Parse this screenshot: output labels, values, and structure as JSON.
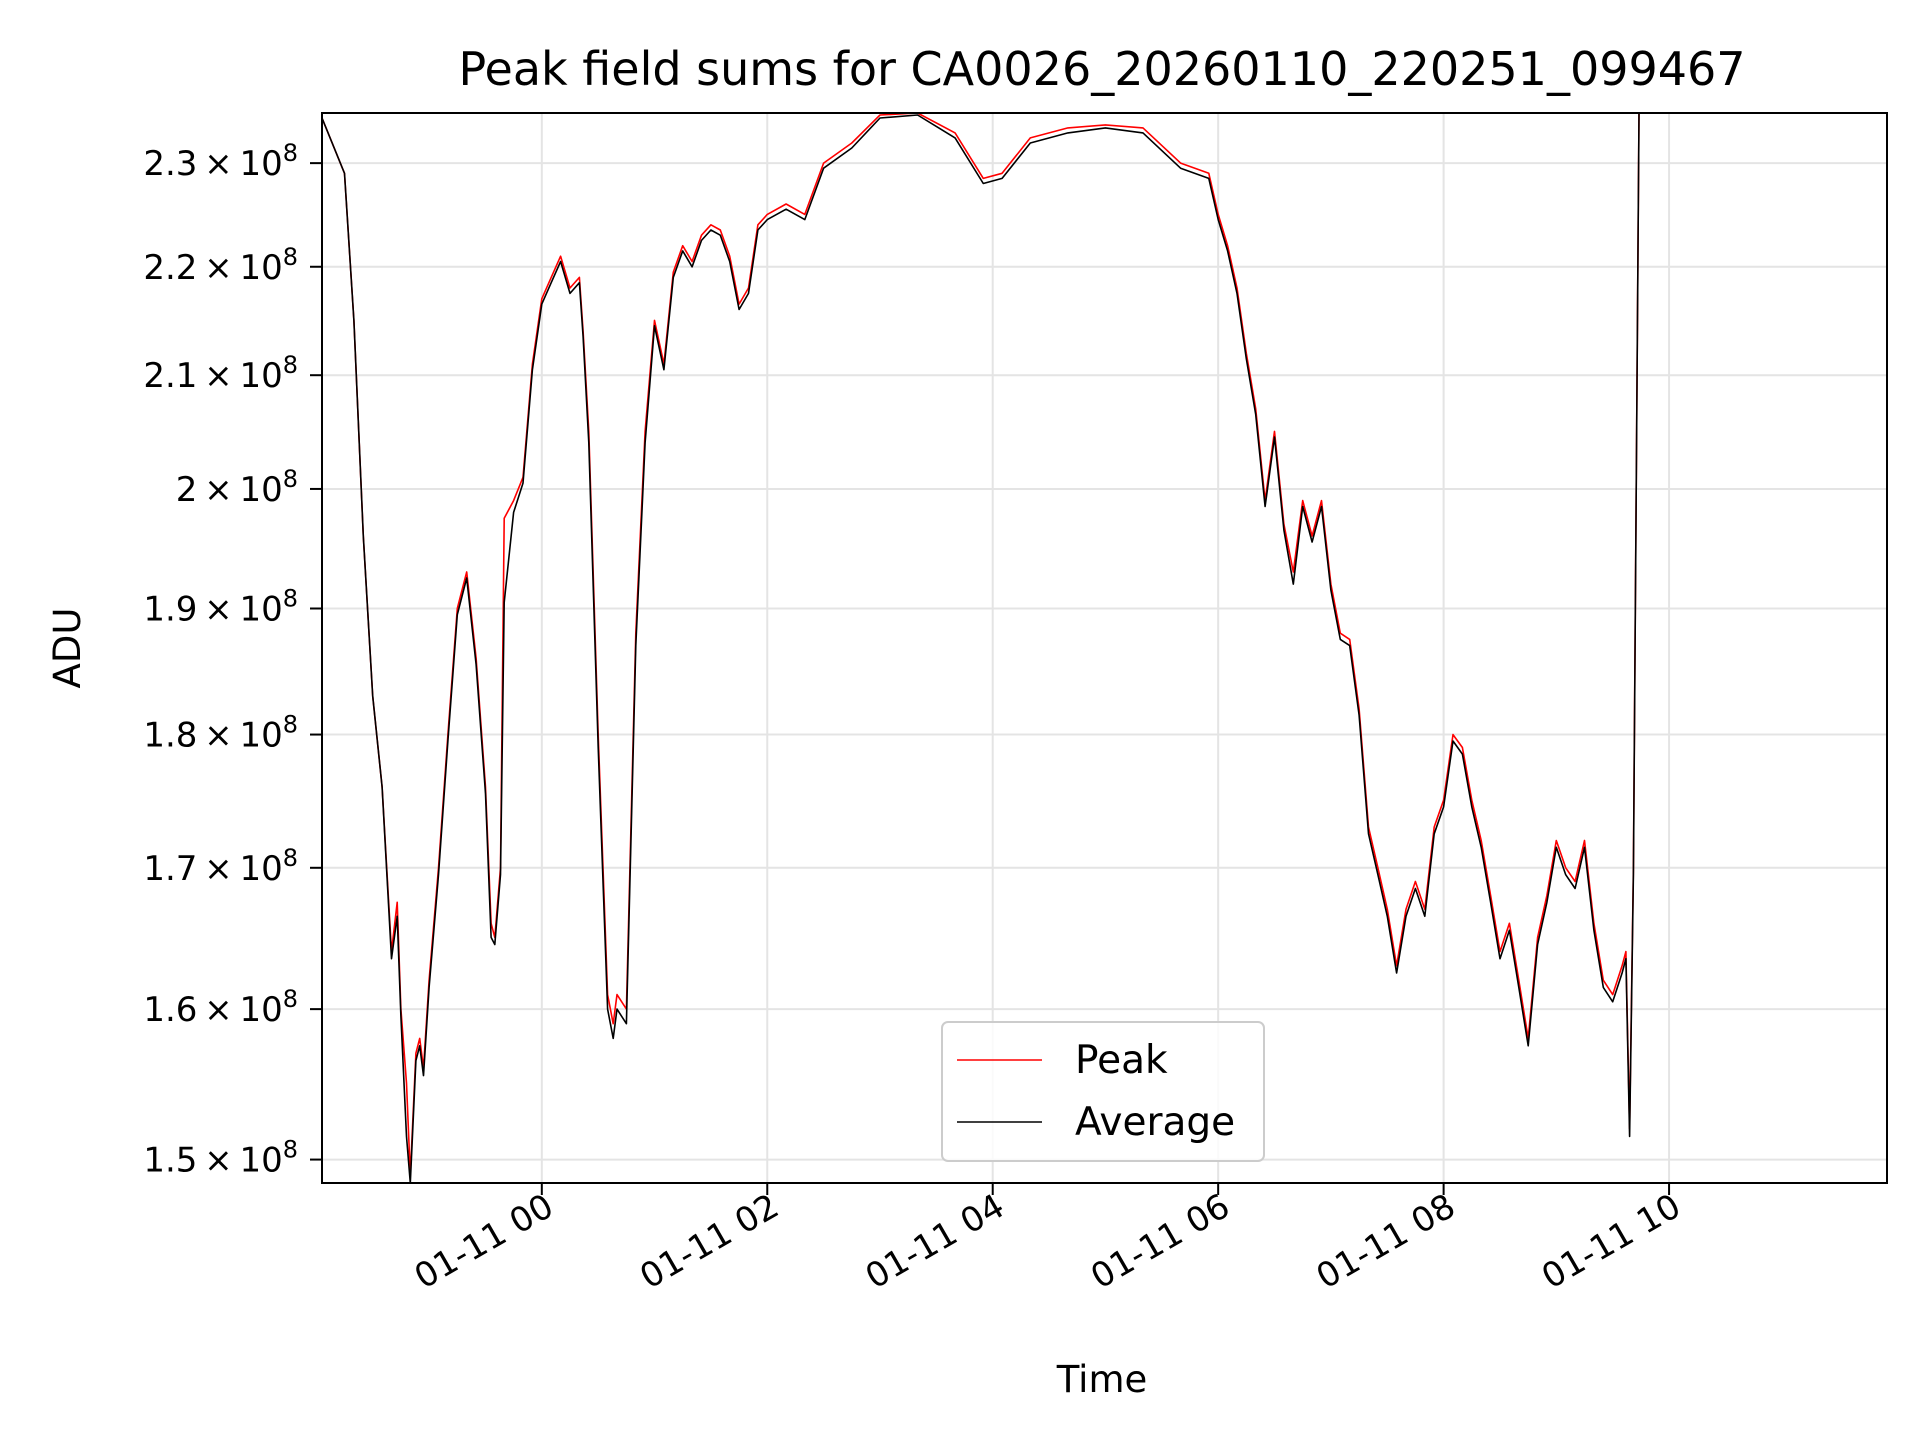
{
  "chart_data": {
    "type": "line",
    "title": "Peak field sums for CA0026_20260110_220251_099467",
    "xlabel": "Time",
    "ylabel": "ADU",
    "y_scale": "log",
    "grid": true,
    "legend_position": "lower center",
    "xlim": [
      "2026-01-10 22:03",
      "2026-01-11 11:56"
    ],
    "ylim": [
      148500000,
      235000000
    ],
    "x_ticks": [
      "2026-01-11 00:00",
      "2026-01-11 02:00",
      "2026-01-11 04:00",
      "2026-01-11 06:00",
      "2026-01-11 08:00",
      "2026-01-11 10:00"
    ],
    "x_tick_labels": [
      "01-11 00",
      "01-11 02",
      "01-11 04",
      "01-11 06",
      "01-11 08",
      "01-11 10"
    ],
    "y_ticks": [
      150000000,
      160000000,
      170000000,
      180000000,
      190000000,
      200000000,
      210000000,
      220000000,
      230000000
    ],
    "y_tick_labels": [
      {
        "mantissa": "1.5",
        "exp": "8"
      },
      {
        "mantissa": "1.6",
        "exp": "8"
      },
      {
        "mantissa": "1.7",
        "exp": "8"
      },
      {
        "mantissa": "1.8",
        "exp": "8"
      },
      {
        "mantissa": "1.9",
        "exp": "8"
      },
      {
        "mantissa": "2",
        "exp": "8"
      },
      {
        "mantissa": "2.1",
        "exp": "8"
      },
      {
        "mantissa": "2.2",
        "exp": "8"
      },
      {
        "mantissa": "2.3",
        "exp": "8"
      }
    ],
    "series": [
      {
        "name": "Peak",
        "color": "#ff0000",
        "x": [
          "2026-01-10 22:03",
          "2026-01-10 22:15",
          "2026-01-10 22:20",
          "2026-01-10 22:25",
          "2026-01-10 22:30",
          "2026-01-10 22:35",
          "2026-01-10 22:40",
          "2026-01-10 22:43",
          "2026-01-10 22:45",
          "2026-01-10 22:48",
          "2026-01-10 22:50",
          "2026-01-10 22:53",
          "2026-01-10 22:55",
          "2026-01-10 22:57",
          "2026-01-10 23:00",
          "2026-01-10 23:05",
          "2026-01-10 23:10",
          "2026-01-10 23:15",
          "2026-01-10 23:20",
          "2026-01-10 23:25",
          "2026-01-10 23:30",
          "2026-01-10 23:33",
          "2026-01-10 23:35",
          "2026-01-10 23:38",
          "2026-01-10 23:40",
          "2026-01-10 23:45",
          "2026-01-10 23:50",
          "2026-01-10 23:55",
          "2026-01-11 00:00",
          "2026-01-11 00:05",
          "2026-01-11 00:10",
          "2026-01-11 00:15",
          "2026-01-11 00:20",
          "2026-01-11 00:22",
          "2026-01-11 00:25",
          "2026-01-11 00:30",
          "2026-01-11 00:35",
          "2026-01-11 00:38",
          "2026-01-11 00:40",
          "2026-01-11 00:45",
          "2026-01-11 00:50",
          "2026-01-11 00:55",
          "2026-01-11 01:00",
          "2026-01-11 01:05",
          "2026-01-11 01:10",
          "2026-01-11 01:15",
          "2026-01-11 01:20",
          "2026-01-11 01:25",
          "2026-01-11 01:30",
          "2026-01-11 01:35",
          "2026-01-11 01:40",
          "2026-01-11 01:45",
          "2026-01-11 01:50",
          "2026-01-11 01:55",
          "2026-01-11 02:00",
          "2026-01-11 02:10",
          "2026-01-11 02:20",
          "2026-01-11 02:30",
          "2026-01-11 02:45",
          "2026-01-11 03:00",
          "2026-01-11 03:20",
          "2026-01-11 03:40",
          "2026-01-11 03:55",
          "2026-01-11 04:05",
          "2026-01-11 04:20",
          "2026-01-11 04:40",
          "2026-01-11 05:00",
          "2026-01-11 05:20",
          "2026-01-11 05:40",
          "2026-01-11 05:55",
          "2026-01-11 06:00",
          "2026-01-11 06:05",
          "2026-01-11 06:10",
          "2026-01-11 06:15",
          "2026-01-11 06:20",
          "2026-01-11 06:25",
          "2026-01-11 06:30",
          "2026-01-11 06:35",
          "2026-01-11 06:40",
          "2026-01-11 06:45",
          "2026-01-11 06:50",
          "2026-01-11 06:55",
          "2026-01-11 07:00",
          "2026-01-11 07:05",
          "2026-01-11 07:10",
          "2026-01-11 07:15",
          "2026-01-11 07:20",
          "2026-01-11 07:25",
          "2026-01-11 07:30",
          "2026-01-11 07:35",
          "2026-01-11 07:40",
          "2026-01-11 07:45",
          "2026-01-11 07:50",
          "2026-01-11 07:55",
          "2026-01-11 08:00",
          "2026-01-11 08:05",
          "2026-01-11 08:10",
          "2026-01-11 08:15",
          "2026-01-11 08:20",
          "2026-01-11 08:25",
          "2026-01-11 08:30",
          "2026-01-11 08:35",
          "2026-01-11 08:40",
          "2026-01-11 08:45",
          "2026-01-11 08:50",
          "2026-01-11 08:55",
          "2026-01-11 09:00",
          "2026-01-11 09:05",
          "2026-01-11 09:10",
          "2026-01-11 09:15",
          "2026-01-11 09:20",
          "2026-01-11 09:25",
          "2026-01-11 09:30",
          "2026-01-11 09:35",
          "2026-01-11 09:37",
          "2026-01-11 09:39",
          "2026-01-11 09:41",
          "2026-01-11 09:44"
        ],
        "values": [
          234500000,
          229000000,
          215000000,
          196000000,
          183000000,
          176000000,
          164000000,
          167500000,
          160000000,
          155000000,
          149000000,
          157000000,
          158000000,
          156000000,
          162000000,
          170000000,
          180000000,
          190000000,
          193000000,
          186000000,
          176000000,
          166000000,
          165000000,
          170000000,
          197500000,
          199000000,
          201000000,
          211000000,
          217000000,
          219000000,
          221000000,
          218000000,
          219000000,
          214000000,
          205000000,
          180000000,
          161000000,
          159000000,
          161000000,
          160000000,
          188000000,
          205000000,
          215000000,
          211000000,
          219500000,
          222000000,
          220500000,
          223000000,
          224000000,
          223500000,
          221000000,
          216500000,
          218000000,
          224000000,
          225000000,
          226000000,
          225000000,
          230000000,
          232000000,
          234800000,
          235000000,
          233000000,
          228500000,
          229000000,
          232500000,
          233500000,
          233800000,
          233500000,
          230000000,
          229000000,
          225000000,
          222000000,
          218000000,
          212000000,
          207000000,
          199000000,
          205000000,
          197000000,
          193000000,
          199000000,
          196000000,
          199000000,
          192000000,
          188000000,
          187500000,
          182000000,
          173000000,
          170000000,
          167000000,
          163000000,
          167000000,
          169000000,
          167000000,
          173000000,
          175000000,
          180000000,
          179000000,
          175000000,
          172000000,
          168000000,
          164000000,
          166000000,
          162000000,
          158000000,
          165000000,
          168000000,
          172000000,
          170000000,
          169000000,
          172000000,
          166000000,
          162000000,
          161000000,
          163000000,
          164000000,
          152000000,
          170000000,
          235000000
        ]
      },
      {
        "name": "Average",
        "color": "#000000",
        "x": [
          "2026-01-10 22:03",
          "2026-01-10 22:15",
          "2026-01-10 22:20",
          "2026-01-10 22:25",
          "2026-01-10 22:30",
          "2026-01-10 22:35",
          "2026-01-10 22:40",
          "2026-01-10 22:43",
          "2026-01-10 22:45",
          "2026-01-10 22:48",
          "2026-01-10 22:50",
          "2026-01-10 22:53",
          "2026-01-10 22:55",
          "2026-01-10 22:57",
          "2026-01-10 23:00",
          "2026-01-10 23:05",
          "2026-01-10 23:10",
          "2026-01-10 23:15",
          "2026-01-10 23:20",
          "2026-01-10 23:25",
          "2026-01-10 23:30",
          "2026-01-10 23:33",
          "2026-01-10 23:35",
          "2026-01-10 23:38",
          "2026-01-10 23:40",
          "2026-01-10 23:45",
          "2026-01-10 23:50",
          "2026-01-10 23:55",
          "2026-01-11 00:00",
          "2026-01-11 00:05",
          "2026-01-11 00:10",
          "2026-01-11 00:15",
          "2026-01-11 00:20",
          "2026-01-11 00:22",
          "2026-01-11 00:25",
          "2026-01-11 00:30",
          "2026-01-11 00:35",
          "2026-01-11 00:38",
          "2026-01-11 00:40",
          "2026-01-11 00:45",
          "2026-01-11 00:50",
          "2026-01-11 00:55",
          "2026-01-11 01:00",
          "2026-01-11 01:05",
          "2026-01-11 01:10",
          "2026-01-11 01:15",
          "2026-01-11 01:20",
          "2026-01-11 01:25",
          "2026-01-11 01:30",
          "2026-01-11 01:35",
          "2026-01-11 01:40",
          "2026-01-11 01:45",
          "2026-01-11 01:50",
          "2026-01-11 01:55",
          "2026-01-11 02:00",
          "2026-01-11 02:10",
          "2026-01-11 02:20",
          "2026-01-11 02:30",
          "2026-01-11 02:45",
          "2026-01-11 03:00",
          "2026-01-11 03:20",
          "2026-01-11 03:40",
          "2026-01-11 03:55",
          "2026-01-11 04:05",
          "2026-01-11 04:20",
          "2026-01-11 04:40",
          "2026-01-11 05:00",
          "2026-01-11 05:20",
          "2026-01-11 05:40",
          "2026-01-11 05:55",
          "2026-01-11 06:00",
          "2026-01-11 06:05",
          "2026-01-11 06:10",
          "2026-01-11 06:15",
          "2026-01-11 06:20",
          "2026-01-11 06:25",
          "2026-01-11 06:30",
          "2026-01-11 06:35",
          "2026-01-11 06:40",
          "2026-01-11 06:45",
          "2026-01-11 06:50",
          "2026-01-11 06:55",
          "2026-01-11 07:00",
          "2026-01-11 07:05",
          "2026-01-11 07:10",
          "2026-01-11 07:15",
          "2026-01-11 07:20",
          "2026-01-11 07:25",
          "2026-01-11 07:30",
          "2026-01-11 07:35",
          "2026-01-11 07:40",
          "2026-01-11 07:45",
          "2026-01-11 07:50",
          "2026-01-11 07:55",
          "2026-01-11 08:00",
          "2026-01-11 08:05",
          "2026-01-11 08:10",
          "2026-01-11 08:15",
          "2026-01-11 08:20",
          "2026-01-11 08:25",
          "2026-01-11 08:30",
          "2026-01-11 08:35",
          "2026-01-11 08:40",
          "2026-01-11 08:45",
          "2026-01-11 08:50",
          "2026-01-11 08:55",
          "2026-01-11 09:00",
          "2026-01-11 09:05",
          "2026-01-11 09:10",
          "2026-01-11 09:15",
          "2026-01-11 09:20",
          "2026-01-11 09:25",
          "2026-01-11 09:30",
          "2026-01-11 09:35",
          "2026-01-11 09:37",
          "2026-01-11 09:39",
          "2026-01-11 09:41",
          "2026-01-11 09:44"
        ],
        "values": [
          234500000,
          229000000,
          215000000,
          196000000,
          183000000,
          176000000,
          163500000,
          166500000,
          159500000,
          151500000,
          148500000,
          156500000,
          157500000,
          155500000,
          161500000,
          169500000,
          179500000,
          189500000,
          192500000,
          185500000,
          175500000,
          165000000,
          164500000,
          169500000,
          190500000,
          198000000,
          200500000,
          210500000,
          216500000,
          218500000,
          220500000,
          217500000,
          218500000,
          213500000,
          204000000,
          179000000,
          160000000,
          158000000,
          160000000,
          159000000,
          187000000,
          204000000,
          214500000,
          210500000,
          219000000,
          221500000,
          220000000,
          222500000,
          223500000,
          223000000,
          220500000,
          216000000,
          217500000,
          223500000,
          224500000,
          225500000,
          224500000,
          229500000,
          231500000,
          234500000,
          234800000,
          232500000,
          228000000,
          228500000,
          232000000,
          233000000,
          233500000,
          233000000,
          229500000,
          228500000,
          224500000,
          221500000,
          217500000,
          211500000,
          206500000,
          198500000,
          204500000,
          196500000,
          192000000,
          198500000,
          195500000,
          198500000,
          191500000,
          187500000,
          187000000,
          181500000,
          172500000,
          169500000,
          166500000,
          162500000,
          166500000,
          168500000,
          166500000,
          172500000,
          174500000,
          179500000,
          178500000,
          174500000,
          171500000,
          167500000,
          163500000,
          165500000,
          161500000,
          157500000,
          164500000,
          167500000,
          171500000,
          169500000,
          168500000,
          171500000,
          165500000,
          161500000,
          160500000,
          162500000,
          163500000,
          151500000,
          169500000,
          235000000
        ]
      }
    ]
  }
}
